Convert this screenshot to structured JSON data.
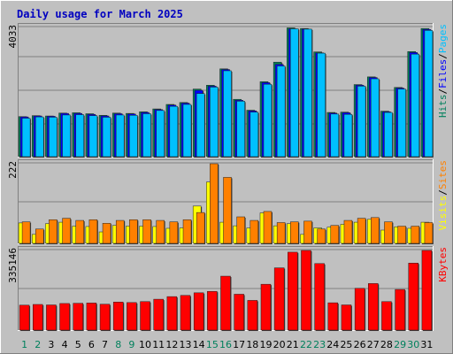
{
  "title": "Daily usage for March 2025",
  "colors": {
    "frame": "#c0c0c0",
    "plot_bg": "#c0c0c0",
    "grid": "#808080",
    "title": "#0000c0",
    "axis_text": "#000000",
    "hits": "#00805c",
    "files": "#0000ff",
    "pages": "#00c0ff",
    "visits": "#ffff00",
    "sites": "#ff8000",
    "kbytes": "#ff0000",
    "weekend_day": "#00805c",
    "weekday_day": "#000000"
  },
  "chart_data": [
    {
      "type": "bar",
      "panel": "hits-files-pages",
      "max_label": "4033",
      "ylim": [
        0,
        4033
      ],
      "legend_labels": [
        "Pages",
        "Files",
        "Hits"
      ],
      "grid": true,
      "series": [
        {
          "name": "Hits",
          "values": [
            1250,
            1280,
            1270,
            1360,
            1370,
            1340,
            1290,
            1360,
            1350,
            1400,
            1490,
            1630,
            1690,
            2110,
            2230,
            2740,
            1790,
            1450,
            2340,
            2950,
            4020,
            4000,
            3270,
            1380,
            1390,
            2250,
            2490,
            1420,
            2160,
            3280,
            4000
          ]
        },
        {
          "name": "Files",
          "values": [
            1240,
            1270,
            1260,
            1350,
            1350,
            1320,
            1270,
            1340,
            1330,
            1380,
            1470,
            1610,
            1670,
            2070,
            2200,
            2720,
            1760,
            1430,
            2310,
            2880,
            3990,
            3980,
            3240,
            1360,
            1370,
            2230,
            2470,
            1400,
            2140,
            3250,
            3970
          ]
        },
        {
          "name": "Pages",
          "values": [
            1200,
            1240,
            1230,
            1300,
            1310,
            1280,
            1230,
            1300,
            1290,
            1340,
            1440,
            1570,
            1630,
            1970,
            2170,
            2680,
            1730,
            1390,
            2260,
            2830,
            3990,
            3980,
            3230,
            1330,
            1320,
            2200,
            2430,
            1380,
            2110,
            3200,
            3940
          ]
        }
      ]
    },
    {
      "type": "bar",
      "panel": "visits-sites",
      "max_label": "222",
      "ylim": [
        0,
        222
      ],
      "legend_labels": [
        "Sites",
        "Visits"
      ],
      "grid": true,
      "series": [
        {
          "name": "Visits",
          "values": [
            57,
            25,
            55,
            59,
            48,
            47,
            32,
            50,
            48,
            48,
            47,
            42,
            43,
            104,
            171,
            59,
            49,
            43,
            85,
            49,
            55,
            25,
            43,
            45,
            53,
            59,
            67,
            37,
            46,
            42,
            59
          ]
        },
        {
          "name": "Sites",
          "values": [
            60,
            40,
            66,
            70,
            64,
            66,
            56,
            64,
            66,
            66,
            64,
            60,
            66,
            86,
            222,
            184,
            74,
            64,
            89,
            58,
            60,
            62,
            40,
            50,
            64,
            70,
            72,
            60,
            48,
            48,
            58
          ]
        }
      ]
    },
    {
      "type": "bar",
      "panel": "kbytes",
      "max_label": "335146",
      "ylim": [
        0,
        335146
      ],
      "legend_labels": [
        "KBytes"
      ],
      "grid": true,
      "series": [
        {
          "name": "KBytes",
          "values": [
            105000,
            108000,
            106000,
            112000,
            113000,
            114000,
            109000,
            118000,
            116000,
            120000,
            130000,
            141000,
            146000,
            157000,
            163000,
            227000,
            151000,
            125000,
            193000,
            262000,
            328000,
            335146,
            280000,
            115000,
            106000,
            176000,
            196000,
            120000,
            171000,
            282000,
            335146
          ]
        }
      ]
    }
  ],
  "days": [
    "1",
    "2",
    "3",
    "4",
    "5",
    "6",
    "7",
    "8",
    "9",
    "10",
    "11",
    "12",
    "13",
    "14",
    "15",
    "16",
    "17",
    "18",
    "19",
    "20",
    "21",
    "22",
    "23",
    "24",
    "25",
    "26",
    "27",
    "28",
    "29",
    "30",
    "31"
  ],
  "weekend_days": [
    1,
    2,
    8,
    9,
    15,
    16,
    22,
    23,
    29,
    30
  ]
}
